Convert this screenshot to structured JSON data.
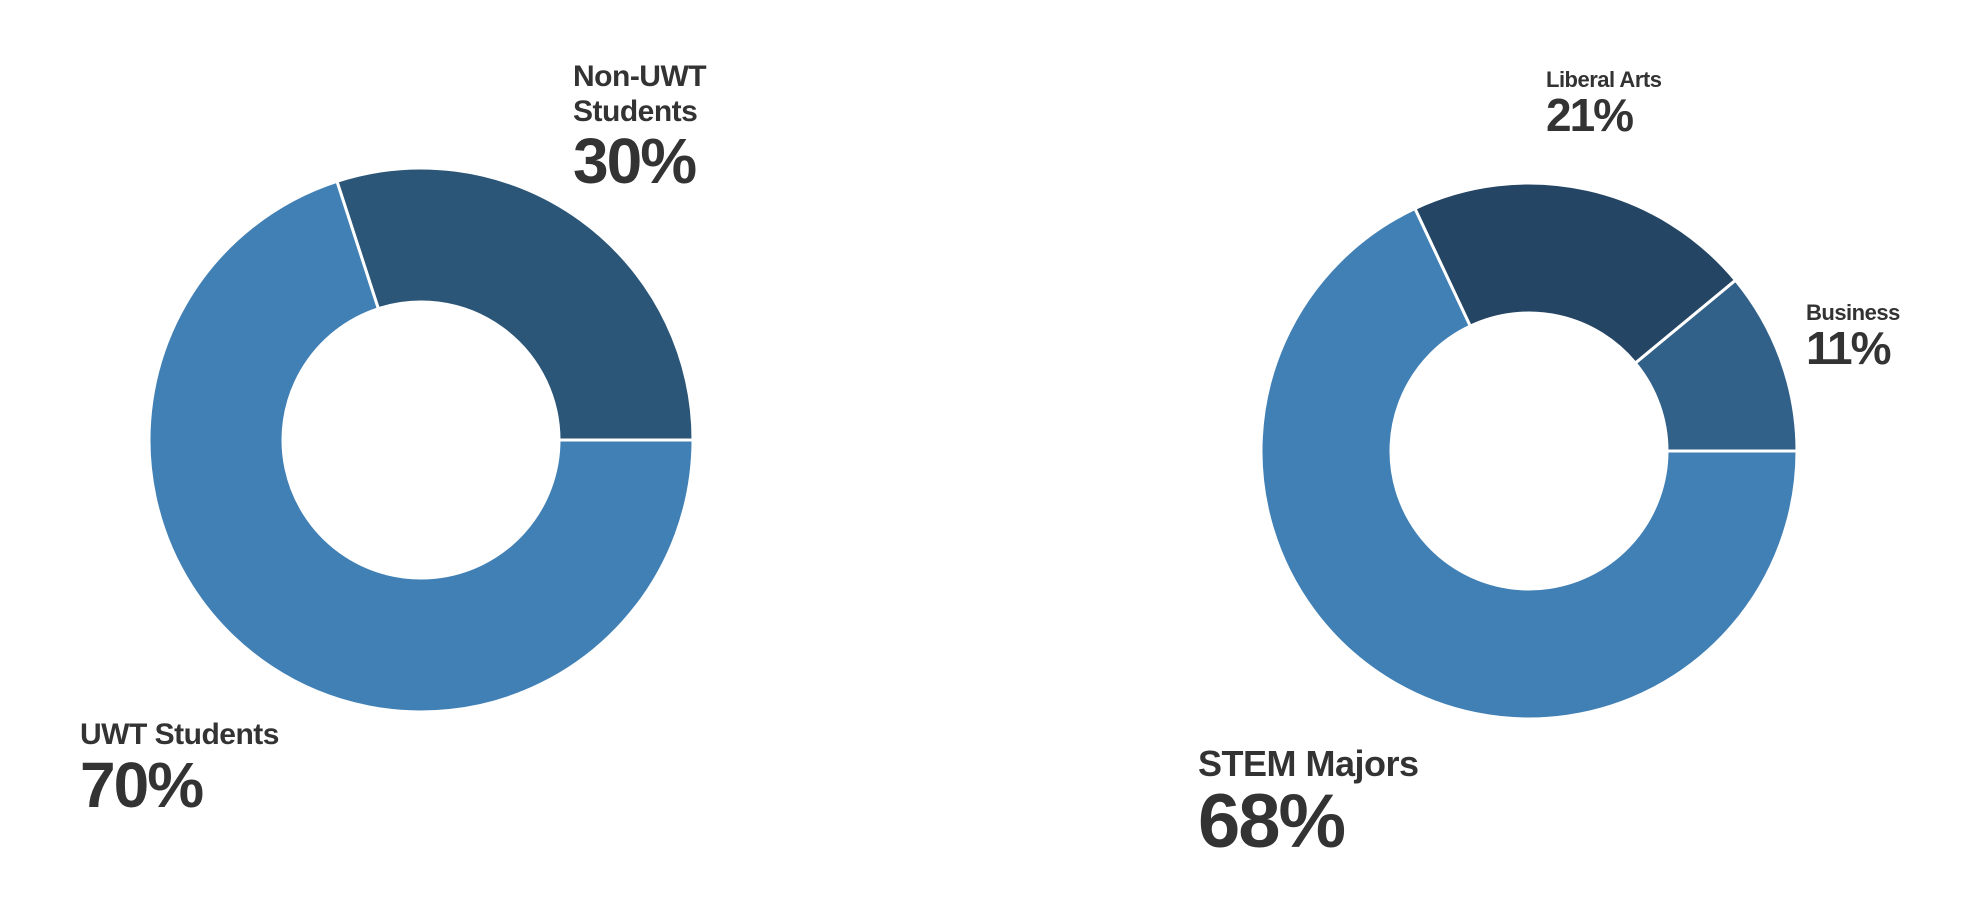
{
  "chart_data": [
    {
      "type": "pie",
      "donut": true,
      "slices": [
        {
          "label": "Non-UWT Students",
          "value": 30,
          "value_label": "30%",
          "color": "#2c5677"
        },
        {
          "label": "UWT Students",
          "value": 70,
          "value_label": "70%",
          "color": "#4180b5"
        }
      ]
    },
    {
      "type": "pie",
      "donut": true,
      "slices": [
        {
          "label": "Business",
          "value": 11,
          "value_label": "11%",
          "color": "#316088"
        },
        {
          "label": "Liberal Arts",
          "value": 21,
          "value_label": "21%",
          "color": "#244664"
        },
        {
          "label": "STEM Majors",
          "value": 68,
          "value_label": "68%",
          "color": "#4180b5"
        }
      ]
    }
  ]
}
